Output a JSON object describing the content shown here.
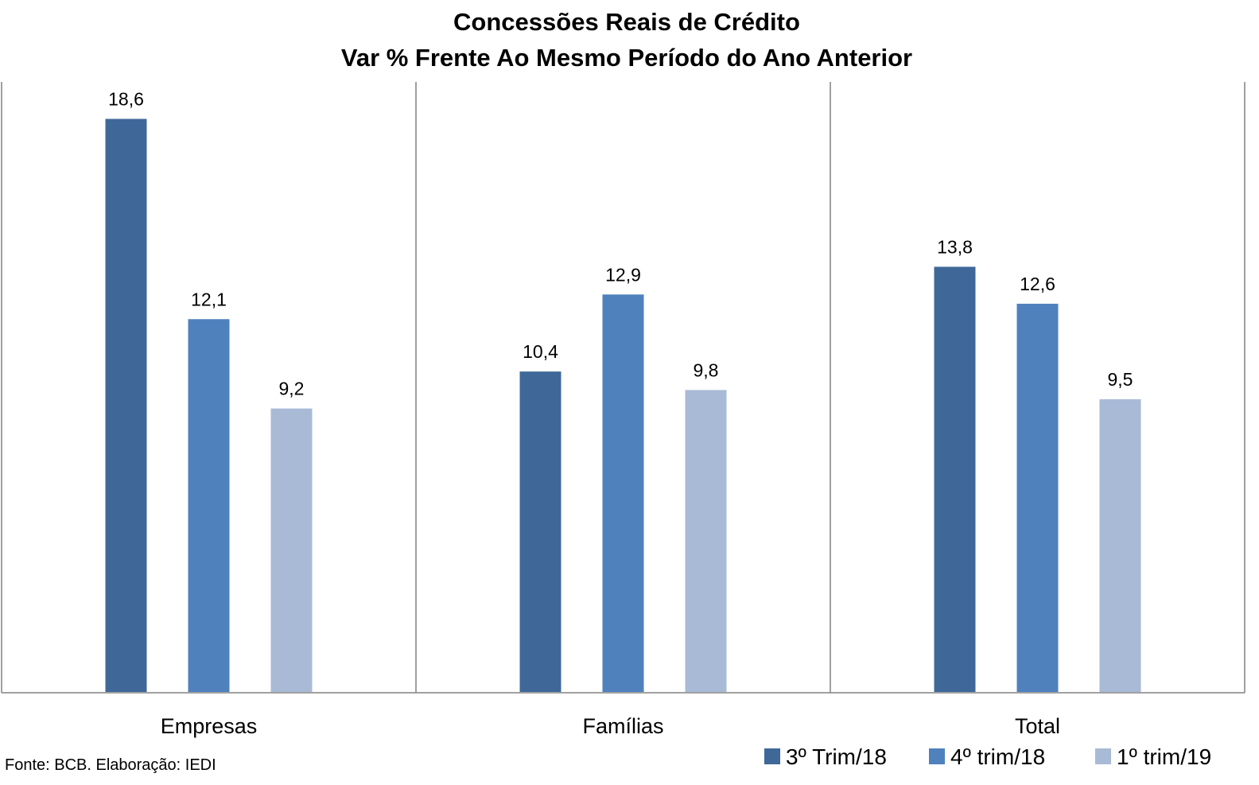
{
  "chart_data": {
    "type": "bar",
    "title": "Concessões Reais de Crédito",
    "subtitle": "Var % Frente Ao Mesmo Período do Ano Anterior",
    "categories": [
      "Empresas",
      "Famílias",
      "Total"
    ],
    "series": [
      {
        "name": "3º Trim/18",
        "color": "#3F6899",
        "values": [
          18.6,
          10.4,
          13.8
        ],
        "labels": [
          "18,6",
          "10,4",
          "13,8"
        ]
      },
      {
        "name": "4º trim/18",
        "color": "#4F81BD",
        "values": [
          12.1,
          12.9,
          12.6
        ],
        "labels": [
          "12,1",
          "12,9",
          "12,6"
        ]
      },
      {
        "name": "1º trim/19",
        "color": "#A9BAD7",
        "values": [
          9.2,
          9.8,
          9.5
        ],
        "labels": [
          "9,2",
          "9,8",
          "9,5"
        ]
      }
    ],
    "xlabel": "",
    "ylabel": "",
    "ylim": [
      0,
      19.8
    ],
    "grid": false,
    "legend": "bottom-right",
    "source": "Fonte: BCB. Elaboração: IEDI"
  }
}
